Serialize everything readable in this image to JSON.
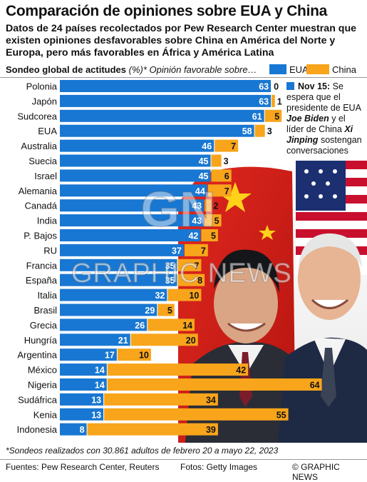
{
  "header": {
    "title": "Comparación de opiniones sobre EUA y China",
    "subtitle": "Datos de 24 países recolectados por Pew Research Center muestran que existen opiniones desfavorables sobre China en América del Norte y Europa, pero más favorables en África y América Latina"
  },
  "legend": {
    "title": "Sondeo global de actitudes",
    "note": "(%)* Opinión favorable sobre…",
    "usa_label": "EUA",
    "china_label": "China"
  },
  "annotation": {
    "date": "Nov 15:",
    "text_a": "Se espera que el presidente de EUA",
    "name_a": "Joe Biden",
    "text_b": "y el líder de China",
    "name_b": "Xi Jinping",
    "text_c": "sostengan conversaciones"
  },
  "footnote": "*Sondeos realizados con 30.861 adultos de febrero 20 a mayo 22, 2023",
  "footer": {
    "sources": "Fuentes: Pew Research Center, Reuters",
    "photos": "Fotos: Getty Images",
    "credit": "© GRAPHIC NEWS"
  },
  "watermark": "GRAPHIC NEWS",
  "colors": {
    "usa": "#1877d2",
    "china": "#f8a51b"
  },
  "chart_data": {
    "type": "bar",
    "stacked": true,
    "orientation": "horizontal",
    "categories": [
      "Polonia",
      "Japón",
      "Sudcorea",
      "EUA",
      "Australia",
      "Suecia",
      "Israel",
      "Alemania",
      "Canadá",
      "India",
      "P. Bajos",
      "RU",
      "Francia",
      "España",
      "Italia",
      "Brasil",
      "Grecia",
      "Hungría",
      "Argentina",
      "México",
      "Nigeria",
      "Sudáfrica",
      "Kenia",
      "Indonesia"
    ],
    "series": [
      {
        "name": "EUA",
        "values": [
          63,
          63,
          61,
          58,
          46,
          45,
          45,
          44,
          43,
          43,
          42,
          37,
          35,
          35,
          32,
          29,
          26,
          21,
          17,
          14,
          14,
          13,
          13,
          8
        ]
      },
      {
        "name": "China",
        "values": [
          0,
          1,
          5,
          3,
          7,
          3,
          6,
          7,
          2,
          5,
          5,
          7,
          7,
          8,
          10,
          5,
          14,
          20,
          10,
          42,
          64,
          34,
          55,
          39
        ]
      }
    ]
  }
}
